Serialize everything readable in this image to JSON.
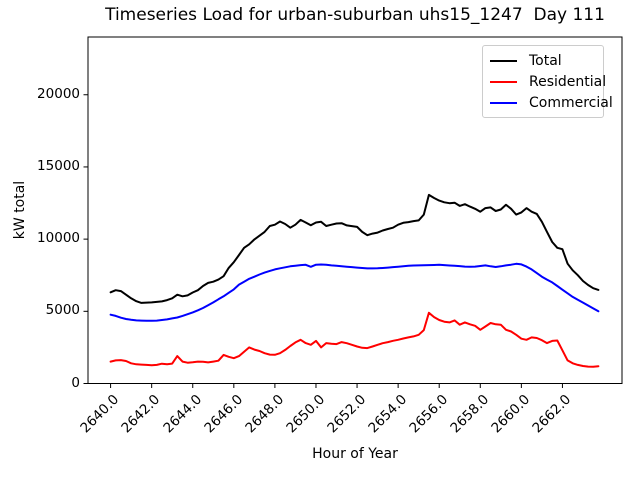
{
  "chart_data": {
    "type": "line",
    "title": "Timeseries Load for urban-suburban uhs15_1247  Day 111",
    "xlabel": "Hour of Year",
    "ylabel": "kW total",
    "grid": false,
    "legend_position": "upper right",
    "xlim": [
      2638.9,
      2664.9
    ],
    "ylim": [
      0,
      24000
    ],
    "x_tick_values": [
      2640,
      2642,
      2644,
      2646,
      2648,
      2650,
      2652,
      2654,
      2656,
      2658,
      2660,
      2662
    ],
    "x_tick_labels": [
      "2640.0",
      "2642.0",
      "2644.0",
      "2646.0",
      "2648.0",
      "2650.0",
      "2652.0",
      "2654.0",
      "2656.0",
      "2658.0",
      "2660.0",
      "2662.0"
    ],
    "y_tick_values": [
      0,
      5000,
      10000,
      15000,
      20000
    ],
    "y_tick_labels": [
      "0",
      "5000",
      "10000",
      "15000",
      "20000"
    ],
    "x_start": 2640.0,
    "x_step": 0.25,
    "series": [
      {
        "name": "Total",
        "color": "#000000",
        "values": [
          6320,
          6460,
          6400,
          6150,
          5900,
          5700,
          5580,
          5600,
          5620,
          5650,
          5690,
          5780,
          5900,
          6150,
          6040,
          6100,
          6300,
          6460,
          6750,
          6970,
          7050,
          7200,
          7430,
          8010,
          8400,
          8900,
          9400,
          9640,
          9980,
          10240,
          10500,
          10910,
          11000,
          11220,
          11050,
          10790,
          11000,
          11330,
          11150,
          10960,
          11150,
          11200,
          10910,
          11000,
          11080,
          11100,
          10950,
          10900,
          10850,
          10500,
          10270,
          10380,
          10450,
          10600,
          10700,
          10790,
          11000,
          11130,
          11180,
          11250,
          11300,
          11700,
          13060,
          12850,
          12670,
          12550,
          12490,
          12520,
          12300,
          12420,
          12250,
          12100,
          11900,
          12150,
          12200,
          11950,
          12050,
          12380,
          12100,
          11700,
          11850,
          12150,
          11900,
          11750,
          11200,
          10500,
          9800,
          9400,
          9300,
          8300,
          7840,
          7500,
          7100,
          6820,
          6600,
          6480
        ]
      },
      {
        "name": "Residential",
        "color": "#ff0000",
        "values": [
          1520,
          1600,
          1620,
          1560,
          1400,
          1330,
          1310,
          1290,
          1260,
          1290,
          1370,
          1340,
          1380,
          1900,
          1520,
          1440,
          1470,
          1520,
          1500,
          1460,
          1520,
          1580,
          1980,
          1850,
          1750,
          1900,
          2200,
          2500,
          2350,
          2250,
          2100,
          2000,
          1990,
          2100,
          2330,
          2600,
          2850,
          3030,
          2800,
          2680,
          2950,
          2500,
          2800,
          2750,
          2730,
          2870,
          2790,
          2680,
          2560,
          2470,
          2450,
          2560,
          2680,
          2790,
          2870,
          2960,
          3030,
          3120,
          3190,
          3260,
          3370,
          3700,
          4900,
          4600,
          4400,
          4280,
          4230,
          4370,
          4070,
          4230,
          4100,
          4000,
          3720,
          3950,
          4190,
          4100,
          4070,
          3720,
          3600,
          3370,
          3100,
          3030,
          3190,
          3150,
          3000,
          2800,
          2950,
          2980,
          2300,
          1600,
          1400,
          1290,
          1210,
          1170,
          1160,
          1200
        ]
      },
      {
        "name": "Commercial",
        "color": "#0000ff",
        "values": [
          4765,
          4680,
          4560,
          4465,
          4410,
          4370,
          4355,
          4350,
          4350,
          4360,
          4400,
          4440,
          4510,
          4570,
          4680,
          4800,
          4925,
          5070,
          5230,
          5420,
          5620,
          5830,
          6040,
          6280,
          6520,
          6850,
          7050,
          7250,
          7400,
          7550,
          7680,
          7800,
          7900,
          7980,
          8050,
          8120,
          8160,
          8200,
          8220,
          8080,
          8230,
          8240,
          8220,
          8180,
          8150,
          8120,
          8090,
          8060,
          8030,
          8000,
          7970,
          7970,
          7980,
          8000,
          8030,
          8060,
          8090,
          8120,
          8150,
          8170,
          8180,
          8190,
          8200,
          8210,
          8220,
          8200,
          8170,
          8150,
          8130,
          8100,
          8080,
          8100,
          8140,
          8180,
          8120,
          8070,
          8120,
          8180,
          8230,
          8290,
          8250,
          8100,
          7900,
          7650,
          7400,
          7200,
          7000,
          6750,
          6500,
          6250,
          6000,
          5800,
          5600,
          5400,
          5200,
          5000
        ]
      }
    ]
  }
}
